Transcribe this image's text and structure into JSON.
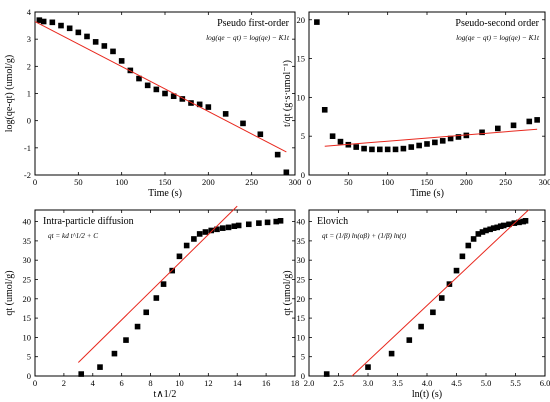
{
  "chart_data": [
    {
      "type": "scatter",
      "title": "Pseudo first-order",
      "equation": "log(qe − qt) = log(qe) − K1t",
      "xlabel": "Time (s)",
      "ylabel": "log(qe-qt)  (umol/g)",
      "xlim": [
        0,
        300
      ],
      "ylim": [
        -2,
        4
      ],
      "xticks": [
        0,
        50,
        100,
        150,
        200,
        250,
        300
      ],
      "yticks": [
        -2,
        -1,
        0,
        1,
        2,
        3,
        4
      ],
      "grid": false,
      "series": [
        {
          "kind": "points",
          "x": [
            5,
            10,
            20,
            30,
            40,
            50,
            60,
            70,
            80,
            90,
            100,
            110,
            120,
            130,
            140,
            150,
            160,
            170,
            180,
            190,
            200,
            220,
            240,
            260,
            280,
            290
          ],
          "y": [
            3.7,
            3.65,
            3.62,
            3.5,
            3.4,
            3.25,
            3.1,
            2.9,
            2.75,
            2.55,
            2.2,
            1.85,
            1.55,
            1.3,
            1.15,
            1.0,
            0.9,
            0.8,
            0.65,
            0.6,
            0.5,
            0.25,
            -0.1,
            -0.5,
            -1.25,
            -1.9
          ]
        },
        {
          "kind": "fit",
          "x": [
            0,
            290
          ],
          "y": [
            3.65,
            -1.15
          ],
          "color": "#e8281e"
        }
      ]
    },
    {
      "type": "scatter",
      "title": "Pseudo-second order",
      "equation": "log(qe − qt) = log(qe) − K1t",
      "xlabel": "Time (s)",
      "ylabel": "t/qt  (g·s·umol⁻¹)",
      "xlim": [
        0,
        300
      ],
      "ylim": [
        0,
        21
      ],
      "xticks": [
        0,
        50,
        100,
        150,
        200,
        250,
        300
      ],
      "yticks": [
        0,
        5,
        10,
        15,
        20
      ],
      "grid": false,
      "series": [
        {
          "kind": "points",
          "x": [
            10,
            20,
            30,
            40,
            50,
            60,
            70,
            80,
            90,
            100,
            110,
            120,
            130,
            140,
            150,
            160,
            170,
            180,
            190,
            200,
            220,
            240,
            260,
            280,
            290
          ],
          "y": [
            19.7,
            8.4,
            5.0,
            4.3,
            3.9,
            3.6,
            3.4,
            3.3,
            3.3,
            3.3,
            3.3,
            3.4,
            3.6,
            3.8,
            4.0,
            4.2,
            4.4,
            4.7,
            4.9,
            5.1,
            5.5,
            6.0,
            6.4,
            6.9,
            7.1
          ]
        },
        {
          "kind": "fit",
          "x": [
            20,
            290
          ],
          "y": [
            3.7,
            5.9
          ],
          "color": "#e8281e"
        }
      ]
    },
    {
      "type": "scatter",
      "title": "Intra-particle diffusion",
      "equation": "qt = kd t^1/2 + C",
      "xlabel": "t∧1/2",
      "ylabel": "qt  (umol/g)",
      "xlim": [
        0,
        18
      ],
      "ylim": [
        0,
        43
      ],
      "xticks": [
        0,
        2,
        4,
        6,
        8,
        10,
        12,
        14,
        16,
        18
      ],
      "yticks": [
        0,
        5,
        10,
        15,
        20,
        25,
        30,
        35,
        40
      ],
      "grid": false,
      "series": [
        {
          "kind": "points",
          "x": [
            3.2,
            4.5,
            5.5,
            6.3,
            7.1,
            7.7,
            8.4,
            8.9,
            9.5,
            10.0,
            10.5,
            11.0,
            11.4,
            11.8,
            12.2,
            12.6,
            13.0,
            13.4,
            13.8,
            14.1,
            14.8,
            15.5,
            16.1,
            16.7,
            17.0
          ],
          "y": [
            0.5,
            2.3,
            5.8,
            9.3,
            12.8,
            16.5,
            20.2,
            23.8,
            27.3,
            31.0,
            33.8,
            35.5,
            36.8,
            37.3,
            37.7,
            38.0,
            38.3,
            38.5,
            38.8,
            39.0,
            39.3,
            39.6,
            39.8,
            40.0,
            40.2
          ]
        },
        {
          "kind": "fit",
          "x": [
            3.0,
            14.0
          ],
          "y": [
            3.5,
            44.0
          ],
          "color": "#e8281e"
        }
      ]
    },
    {
      "type": "scatter",
      "title": "Elovich",
      "equation": "qt = (1/β) ln(αβ) + (1/β) ln(t)",
      "xlabel": "ln(t) (s)",
      "ylabel": "qt  (umol/g)",
      "xlim": [
        2.0,
        6.0
      ],
      "ylim": [
        0,
        43
      ],
      "xticks": [
        2.0,
        2.5,
        3.0,
        3.5,
        4.0,
        4.5,
        5.0,
        5.5,
        6.0
      ],
      "yticks": [
        0,
        5,
        10,
        15,
        20,
        25,
        30,
        35,
        40
      ],
      "grid": false,
      "series": [
        {
          "kind": "points",
          "x": [
            2.3,
            3.0,
            3.4,
            3.7,
            3.9,
            4.1,
            4.25,
            4.38,
            4.5,
            4.6,
            4.7,
            4.79,
            4.87,
            4.94,
            5.0,
            5.07,
            5.13,
            5.19,
            5.25,
            5.3,
            5.39,
            5.48,
            5.56,
            5.63,
            5.67
          ],
          "y": [
            0.5,
            2.3,
            5.8,
            9.3,
            12.8,
            16.5,
            20.2,
            23.8,
            27.3,
            31.0,
            33.8,
            35.5,
            36.8,
            37.3,
            37.7,
            38.0,
            38.3,
            38.5,
            38.8,
            39.0,
            39.3,
            39.6,
            39.8,
            40.0,
            40.2
          ]
        },
        {
          "kind": "fit",
          "x": [
            2.73,
            5.72
          ],
          "y": [
            0.0,
            43.0
          ],
          "color": "#e8281e"
        }
      ]
    }
  ]
}
